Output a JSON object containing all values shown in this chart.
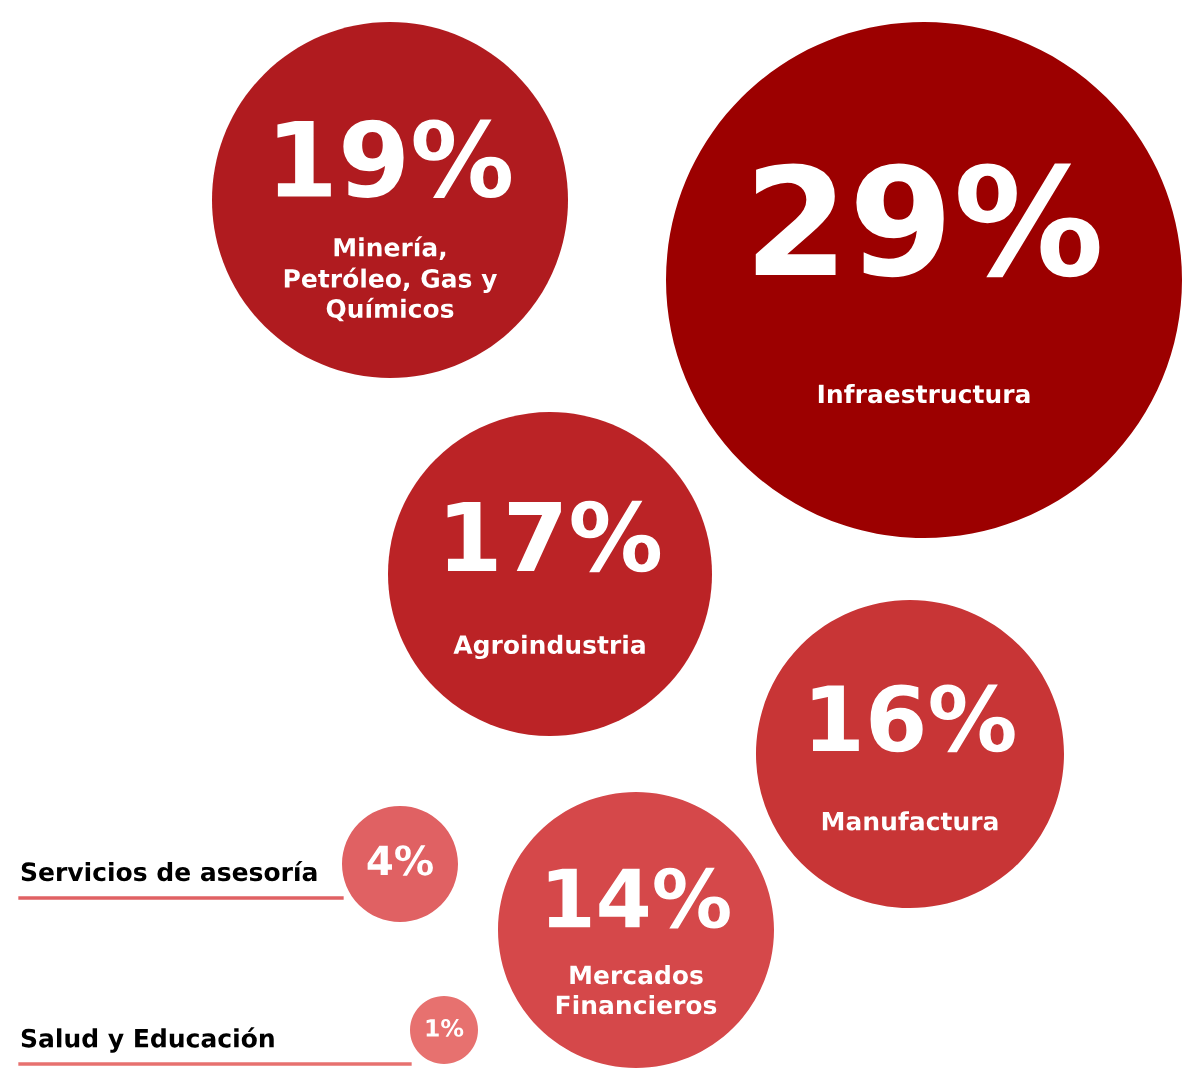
{
  "chart_data": {
    "type": "other",
    "categories": [
      "Minería, Petróleo, Gas y Químicos",
      "Infraestructura",
      "Agroindustria",
      "Manufactura",
      "Mercados Financieros",
      "Servicios de asesoría",
      "Salud y Educación"
    ],
    "values": [
      19,
      29,
      17,
      16,
      14,
      4,
      1
    ],
    "value_labels": [
      "19%",
      "29%",
      "17%",
      "16%",
      "14%",
      "4%",
      "1%"
    ],
    "colors": [
      "#b01b1f",
      "#9c0000",
      "#bb2326",
      "#c83536",
      "#d5484a",
      "#e06163",
      "#e7716f"
    ]
  }
}
